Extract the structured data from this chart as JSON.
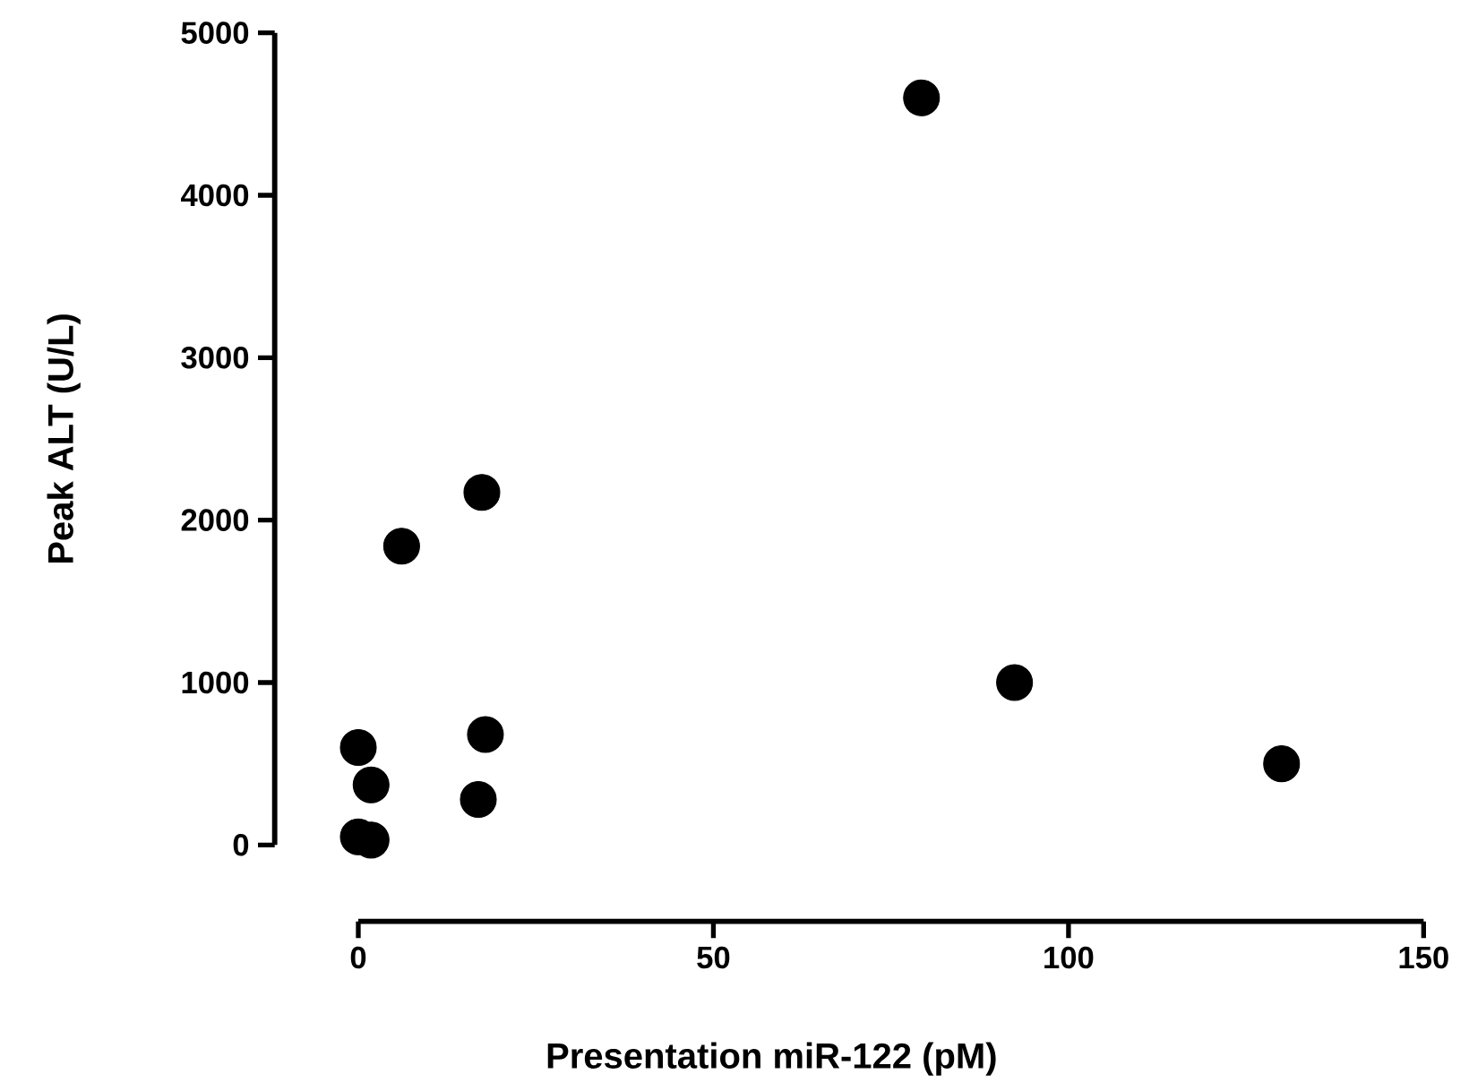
{
  "chart_data": {
    "type": "scatter",
    "xlabel": "Presentation miR-122 (pM)",
    "ylabel": "Peak ALT (U/L)",
    "x": [
      79.3,
      17.4,
      6.1,
      92.4,
      130,
      17.9,
      16.9,
      0,
      1.8,
      0,
      1.8
    ],
    "values": [
      4600,
      2170,
      1840,
      1000,
      500,
      680,
      280,
      600,
      370,
      50,
      30
    ],
    "color": "#000000",
    "grid": false,
    "xlim": [
      0,
      150
    ],
    "xticks": [
      0,
      50,
      100,
      150
    ],
    "ylim": [
      0,
      5000
    ],
    "yticks": [
      0,
      1000,
      2000,
      3000,
      4000,
      5000
    ]
  }
}
